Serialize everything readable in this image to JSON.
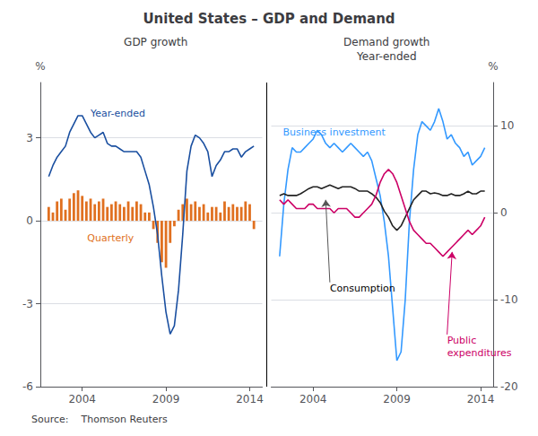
{
  "title": "United States – GDP and Demand",
  "source": "Source:    Thomson Reuters",
  "chart_data": [
    {
      "type": "bar",
      "title": "GDP growth",
      "ylabel": "%",
      "x": [
        2002.0,
        2002.25,
        2002.5,
        2002.75,
        2003.0,
        2003.25,
        2003.5,
        2003.75,
        2004.0,
        2004.25,
        2004.5,
        2004.75,
        2005.0,
        2005.25,
        2005.5,
        2005.75,
        2006.0,
        2006.25,
        2006.5,
        2006.75,
        2007.0,
        2007.25,
        2007.5,
        2007.75,
        2008.0,
        2008.25,
        2008.5,
        2008.75,
        2009.0,
        2009.25,
        2009.5,
        2009.75,
        2010.0,
        2010.25,
        2010.5,
        2010.75,
        2011.0,
        2011.25,
        2011.5,
        2011.75,
        2012.0,
        2012.25,
        2012.5,
        2012.75,
        2013.0,
        2013.25,
        2013.5,
        2013.75,
        2014.0,
        2014.25
      ],
      "series": [
        {
          "type": "bar",
          "color": "#e07020",
          "values": [
            0.5,
            0.3,
            0.7,
            0.8,
            0.4,
            0.8,
            1.0,
            1.1,
            0.9,
            0.7,
            0.8,
            0.6,
            0.7,
            0.8,
            0.5,
            0.6,
            0.7,
            0.6,
            0.5,
            0.7,
            0.5,
            0.7,
            0.6,
            0.3,
            0.3,
            -0.3,
            -0.8,
            -1.5,
            -1.7,
            -0.8,
            -0.2,
            0.4,
            0.6,
            0.8,
            0.6,
            0.7,
            0.5,
            0.6,
            0.3,
            0.5,
            0.5,
            0.3,
            0.7,
            0.5,
            0.6,
            0.5,
            0.5,
            0.7,
            0.6,
            -0.3
          ]
        },
        {
          "type": "line",
          "color": "#1a4fa0",
          "values": [
            1.6,
            2.0,
            2.3,
            2.5,
            2.7,
            3.2,
            3.5,
            3.8,
            3.8,
            3.5,
            3.2,
            3.0,
            3.1,
            3.2,
            2.8,
            2.7,
            2.7,
            2.6,
            2.5,
            2.5,
            2.5,
            2.5,
            2.3,
            1.8,
            1.3,
            0.5,
            -0.5,
            -2.0,
            -3.3,
            -4.1,
            -3.8,
            -2.5,
            -0.5,
            1.8,
            2.7,
            3.1,
            3.0,
            2.8,
            2.5,
            1.6,
            2.0,
            2.2,
            2.5,
            2.5,
            2.6,
            2.6,
            2.3,
            2.5,
            2.6,
            2.7
          ]
        }
      ],
      "xlim": [
        2001.5,
        2014.75
      ],
      "xticks": [
        2004,
        2009,
        2014
      ],
      "ylim": [
        -6,
        5
      ],
      "yticks": [
        -6,
        -3,
        0,
        3
      ],
      "grid": true,
      "annotations": [
        {
          "text": "Year-ended",
          "x": 2004.5,
          "y": 3.65,
          "color": "#1a4fa0"
        },
        {
          "text": "Quarterly",
          "x": 2004.3,
          "y": -0.85,
          "color": "#e07020"
        }
      ]
    },
    {
      "type": "line",
      "title": "Demand growth\nYear-ended",
      "ylabel": "%",
      "x": [
        2002.0,
        2002.25,
        2002.5,
        2002.75,
        2003.0,
        2003.25,
        2003.5,
        2003.75,
        2004.0,
        2004.25,
        2004.5,
        2004.75,
        2005.0,
        2005.25,
        2005.5,
        2005.75,
        2006.0,
        2006.25,
        2006.5,
        2006.75,
        2007.0,
        2007.25,
        2007.5,
        2007.75,
        2008.0,
        2008.25,
        2008.5,
        2008.75,
        2009.0,
        2009.25,
        2009.5,
        2009.75,
        2010.0,
        2010.25,
        2010.5,
        2010.75,
        2011.0,
        2011.25,
        2011.5,
        2011.75,
        2012.0,
        2012.25,
        2012.5,
        2012.75,
        2013.0,
        2013.25,
        2013.5,
        2013.75,
        2014.0,
        2014.25
      ],
      "series": [
        {
          "type": "line",
          "color": "#3399ff",
          "values": [
            -5.0,
            1.0,
            5.0,
            7.5,
            7.0,
            7.0,
            7.5,
            8.0,
            8.5,
            9.5,
            9.0,
            8.0,
            7.5,
            8.0,
            7.5,
            7.0,
            7.5,
            8.0,
            7.5,
            7.0,
            6.5,
            7.0,
            6.0,
            4.0,
            2.0,
            -1.0,
            -5.0,
            -11.0,
            -17.0,
            -16.0,
            -10.0,
            -1.0,
            5.0,
            9.0,
            10.5,
            10.0,
            9.5,
            10.5,
            12.0,
            10.5,
            8.5,
            9.0,
            8.0,
            7.5,
            6.5,
            7.0,
            5.5,
            6.0,
            6.5,
            7.5
          ]
        },
        {
          "type": "line",
          "color": "#222222",
          "values": [
            2.0,
            2.2,
            2.0,
            2.0,
            2.0,
            2.2,
            2.5,
            2.8,
            3.0,
            3.0,
            2.8,
            3.0,
            3.2,
            3.0,
            2.8,
            3.0,
            3.0,
            3.0,
            2.8,
            2.5,
            2.5,
            2.5,
            2.2,
            1.8,
            1.2,
            0.2,
            -0.5,
            -1.5,
            -2.0,
            -1.5,
            -0.5,
            0.5,
            1.5,
            2.0,
            2.5,
            2.5,
            2.2,
            2.3,
            2.2,
            2.0,
            2.0,
            2.2,
            2.0,
            2.0,
            2.2,
            2.5,
            2.2,
            2.2,
            2.5,
            2.5
          ]
        },
        {
          "type": "line",
          "color": "#cc0066",
          "values": [
            1.5,
            1.0,
            1.5,
            1.0,
            0.5,
            0.5,
            0.5,
            1.0,
            1.0,
            0.5,
            0.5,
            0.5,
            0.5,
            0.0,
            0.5,
            0.5,
            0.5,
            0.0,
            -0.5,
            -0.5,
            0.0,
            0.5,
            1.0,
            2.0,
            3.5,
            4.5,
            5.0,
            4.5,
            3.5,
            2.0,
            0.5,
            -1.0,
            -2.0,
            -2.5,
            -3.0,
            -3.5,
            -3.5,
            -4.0,
            -4.5,
            -5.0,
            -4.5,
            -4.0,
            -3.5,
            -3.0,
            -2.5,
            -2.0,
            -2.5,
            -2.0,
            -1.5,
            -0.5
          ]
        }
      ],
      "xlim": [
        2001.5,
        2014.75
      ],
      "xticks": [
        2004,
        2009,
        2014
      ],
      "ylim": [
        -20,
        15
      ],
      "yticks": [
        -20,
        -10,
        0,
        10
      ],
      "grid": true,
      "annotations": [
        {
          "text": "Business investment",
          "x": 2002.2,
          "y": 8.5,
          "color": "#3399ff"
        },
        {
          "text": "Consumption",
          "x": 2005.0,
          "y": -8.0,
          "color": "#000000",
          "arrow_to": [
            2004.75,
            1.5
          ]
        },
        {
          "text": "Public\nexpenditures",
          "x": 2012.0,
          "y": -14.0,
          "color": "#cc0066",
          "arrow_to": [
            2012.3,
            -4.5
          ]
        }
      ]
    }
  ]
}
